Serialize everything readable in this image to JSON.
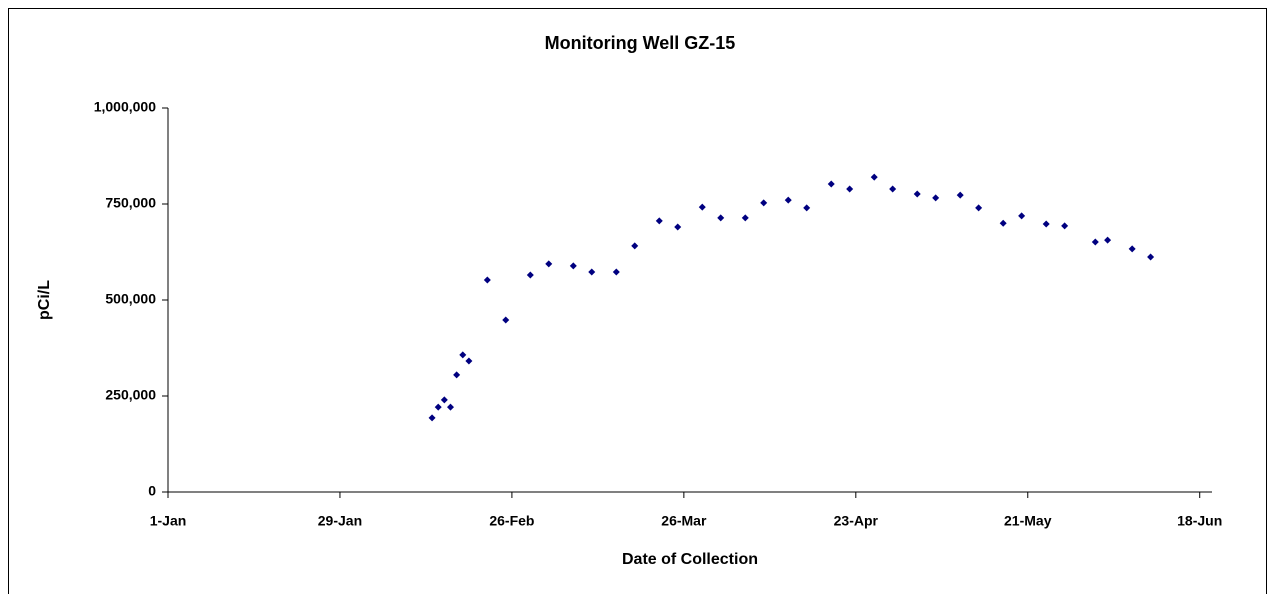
{
  "chart_data": {
    "type": "scatter",
    "title": "Monitoring Well GZ-15",
    "x_label": "Date of Collection",
    "y_label": "pCi/L",
    "color": "#000080",
    "x": [
      44,
      45,
      46,
      47,
      48,
      49,
      50,
      53,
      56,
      60,
      63,
      67,
      70,
      74,
      77,
      81,
      84,
      88,
      91,
      95,
      98,
      102,
      105,
      109,
      112,
      116,
      119,
      123,
      126,
      130,
      133,
      137,
      140,
      144,
      147,
      152,
      154,
      158,
      161
    ],
    "values": [
      193000,
      221000,
      240000,
      221000,
      305000,
      357000,
      341000,
      552000,
      448000,
      565000,
      594000,
      589000,
      573000,
      573000,
      641000,
      706000,
      690000,
      742000,
      714000,
      714000,
      753000,
      760000,
      740000,
      802000,
      789000,
      820000,
      789000,
      776000,
      766000,
      773000,
      740000,
      700000,
      719000,
      698000,
      693000,
      651000,
      656000,
      633000,
      612000
    ],
    "xlim": [
      1,
      171
    ],
    "xticks": [
      {
        "value": 1,
        "label": "1-Jan"
      },
      {
        "value": 29,
        "label": "29-Jan"
      },
      {
        "value": 57,
        "label": "26-Feb"
      },
      {
        "value": 85,
        "label": "26-Mar"
      },
      {
        "value": 113,
        "label": "23-Apr"
      },
      {
        "value": 141,
        "label": "21-May"
      },
      {
        "value": 169,
        "label": "18-Jun"
      }
    ],
    "ylim": [
      0,
      1000000
    ],
    "yticks": [
      0,
      {
        "value": 250000,
        "label": "250,000"
      },
      {
        "value": 500000,
        "label": "500,000"
      },
      {
        "value": 750000,
        "label": "750,000"
      },
      {
        "value": 1000000,
        "label": "1,000,000"
      }
    ],
    "grid": false
  }
}
